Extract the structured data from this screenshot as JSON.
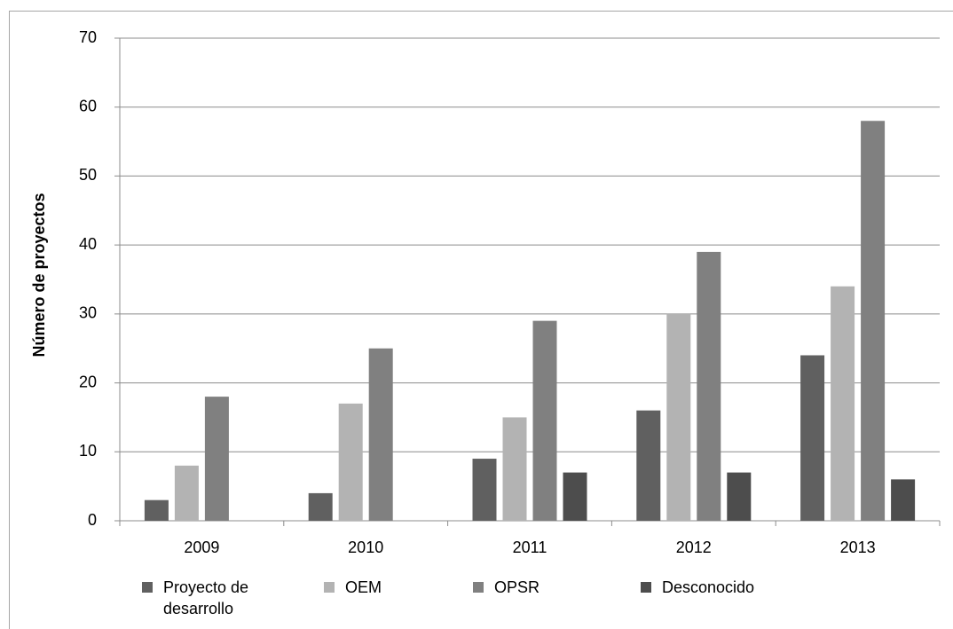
{
  "chart_data": {
    "type": "bar",
    "y_label": "Número de proyectos",
    "categories": [
      "2009",
      "2010",
      "2011",
      "2012",
      "2013"
    ],
    "series": [
      {
        "name": "Proyecto de desarrollo",
        "color": "#606060",
        "values": [
          3,
          4,
          9,
          16,
          24
        ]
      },
      {
        "name": "OEM",
        "color": "#b3b3b3",
        "values": [
          8,
          17,
          15,
          30,
          34
        ]
      },
      {
        "name": "OPSR",
        "color": "#808080",
        "values": [
          18,
          25,
          29,
          39,
          58
        ]
      },
      {
        "name": "Desconocido",
        "color": "#4d4d4d",
        "values": [
          null,
          null,
          7,
          7,
          6
        ]
      }
    ],
    "ylim": [
      0,
      70
    ],
    "yticks": [
      0,
      10,
      20,
      30,
      40,
      50,
      60,
      70
    ],
    "grid": true,
    "legend": "bottom"
  }
}
